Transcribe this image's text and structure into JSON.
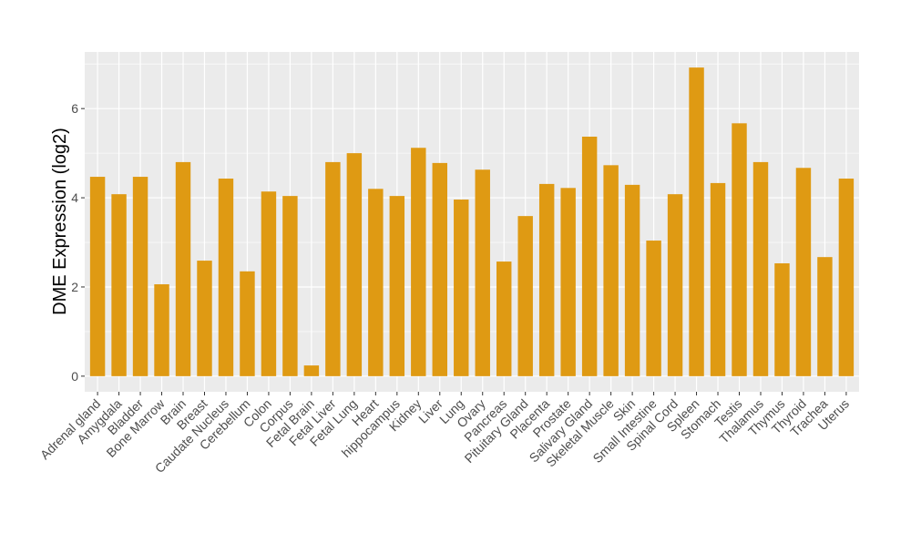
{
  "chart_data": {
    "type": "bar",
    "title": "",
    "xlabel": "",
    "ylabel": "DME Expression (log2)",
    "ylim": [
      -0.35,
      7.27
    ],
    "yticks": [
      0,
      2,
      4,
      6
    ],
    "grid": true,
    "bar_color": "#DF9A13",
    "panel_color": "#EBEBEB",
    "categories": [
      "Adrenal gland",
      "Amygdala",
      "Bladder",
      "Bone Marrow",
      "Brain",
      "Breast",
      "Caudate Nucleus",
      "Cerebellum",
      "Colon",
      "Corpus",
      "Fetal Brain",
      "Fetal Liver",
      "Fetal Lung",
      "Heart",
      "hippocampus",
      "Kidney",
      "Liver",
      "Lung",
      "Ovary",
      "Pancreas",
      "Pituitary Gland",
      "Placenta",
      "Prostate",
      "Salivary Gland",
      "Skeletal Muscle",
      "Skin",
      "Small Intestine",
      "Spinal Cord",
      "Spleen",
      "Stomach",
      "Testis",
      "Thalamus",
      "Thymus",
      "Thyroid",
      "Trachea",
      "Uterus"
    ],
    "values": [
      4.47,
      4.08,
      4.47,
      2.06,
      4.8,
      2.59,
      4.43,
      2.35,
      4.14,
      4.04,
      0.24,
      4.8,
      5.0,
      4.2,
      4.04,
      5.12,
      4.78,
      3.96,
      4.63,
      2.57,
      3.59,
      4.31,
      4.22,
      5.37,
      4.73,
      4.29,
      3.04,
      4.08,
      6.92,
      4.33,
      5.67,
      4.8,
      2.53,
      4.67,
      2.67,
      4.43
    ]
  }
}
